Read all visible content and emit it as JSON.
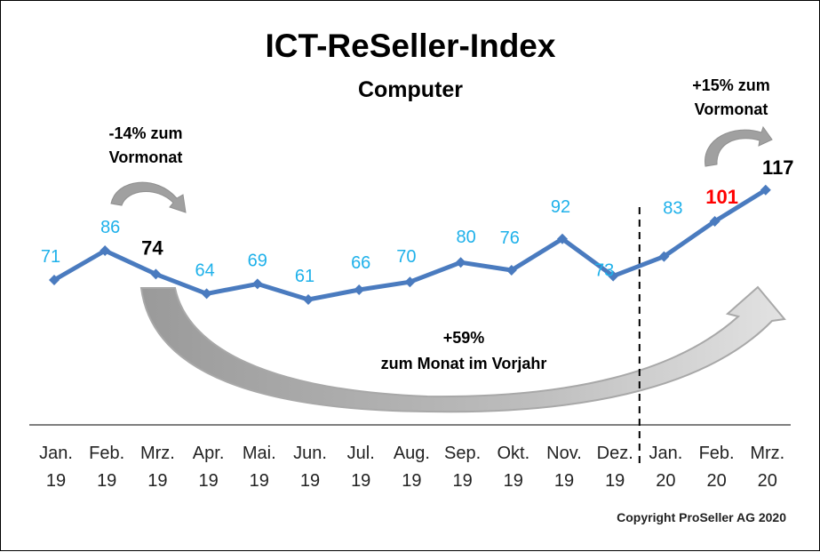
{
  "chart_data": {
    "type": "line",
    "title": "ICT-ReSeller-Index",
    "subtitle": "Computer",
    "xlabel": "",
    "ylabel": "",
    "grid": false,
    "legend": "none",
    "categories": [
      [
        "Jan.",
        "19"
      ],
      [
        "Feb.",
        "19"
      ],
      [
        "Mrz.",
        "19"
      ],
      [
        "Apr.",
        "19"
      ],
      [
        "Mai.",
        "19"
      ],
      [
        "Jun.",
        "19"
      ],
      [
        "Jul.",
        "19"
      ],
      [
        "Aug.",
        "19"
      ],
      [
        "Sep.",
        "19"
      ],
      [
        "Okt.",
        "19"
      ],
      [
        "Nov.",
        "19"
      ],
      [
        "Dez.",
        "19"
      ],
      [
        "Jan.",
        "20"
      ],
      [
        "Feb.",
        "20"
      ],
      [
        "Mrz.",
        "20"
      ]
    ],
    "series": [
      {
        "name": "Computer",
        "color": "#4a7bbf",
        "values": [
          71,
          86,
          74,
          64,
          69,
          61,
          66,
          70,
          80,
          76,
          92,
          73,
          83,
          101,
          117
        ]
      }
    ],
    "label_colors": {
      "default": "#1fb1ea",
      "highlight_black": "#000000",
      "highlight_red": "#ff0000"
    },
    "highlighted_points": {
      "2": "black",
      "13": "red",
      "14": "black"
    },
    "year_divider_after_index": 11,
    "annotations": [
      {
        "id": "mom_prev",
        "lines": [
          "-14% zum",
          "Vormonat"
        ]
      },
      {
        "id": "mom_curr",
        "lines": [
          "+15% zum",
          "Vormonat"
        ]
      },
      {
        "id": "yoy",
        "lines": [
          "+59%",
          "zum Monat im Vorjahr"
        ]
      }
    ],
    "copyright": "Copyright ProSeller AG 2020"
  }
}
